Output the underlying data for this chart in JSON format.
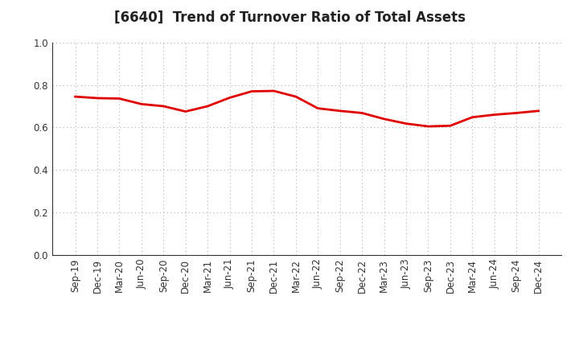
{
  "title": "[6640]  Trend of Turnover Ratio of Total Assets",
  "x_labels": [
    "Sep-19",
    "Dec-19",
    "Mar-20",
    "Jun-20",
    "Sep-20",
    "Dec-20",
    "Mar-21",
    "Jun-21",
    "Sep-21",
    "Dec-21",
    "Mar-22",
    "Jun-22",
    "Sep-22",
    "Dec-22",
    "Mar-23",
    "Jun-23",
    "Sep-23",
    "Dec-23",
    "Mar-24",
    "Jun-24",
    "Sep-24",
    "Dec-24"
  ],
  "y_values": [
    0.745,
    0.738,
    0.736,
    0.71,
    0.7,
    0.675,
    0.7,
    0.74,
    0.77,
    0.772,
    0.745,
    0.69,
    0.678,
    0.668,
    0.64,
    0.618,
    0.605,
    0.608,
    0.648,
    0.66,
    0.668,
    0.678
  ],
  "line_color": "#e00000",
  "line_width": 2.0,
  "ylim": [
    0.0,
    1.0
  ],
  "yticks": [
    0.0,
    0.2,
    0.4,
    0.6,
    0.8,
    1.0
  ],
  "grid_color": "#b0b0b0",
  "background_color": "#ffffff",
  "title_fontsize": 12,
  "tick_fontsize": 8.5,
  "title_color": "#222222"
}
